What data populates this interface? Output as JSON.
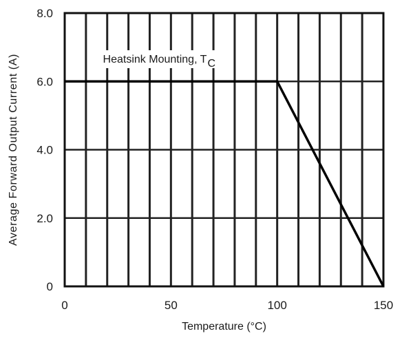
{
  "chart_data": {
    "type": "line",
    "xlabel": "Temperature (°C)",
    "ylabel": "Average Forward Output Current (A)",
    "xlim": [
      0,
      150
    ],
    "ylim": [
      0,
      8
    ],
    "x_ticks": [
      {
        "value": 0,
        "label": "0"
      },
      {
        "value": 50,
        "label": "50"
      },
      {
        "value": 100,
        "label": "100"
      },
      {
        "value": 150,
        "label": "150"
      }
    ],
    "y_ticks": [
      {
        "value": 0,
        "label": "0"
      },
      {
        "value": 2,
        "label": "2.0"
      },
      {
        "value": 4,
        "label": "4.0"
      },
      {
        "value": 6,
        "label": "6.0"
      },
      {
        "value": 8,
        "label": "8.0"
      }
    ],
    "x_gridlines": [
      0,
      10,
      20,
      30,
      40,
      50,
      60,
      70,
      80,
      90,
      100,
      110,
      120,
      130,
      140,
      150
    ],
    "y_gridlines": [
      0,
      2,
      4,
      6,
      8
    ],
    "grid": true,
    "series": [
      {
        "x": [
          0,
          100,
          150
        ],
        "y": [
          6.0,
          6.0,
          0
        ]
      }
    ],
    "annotations": [
      {
        "text": "Heatsink Mounting, T",
        "subscript": "C",
        "x": 18,
        "y": 6.55
      }
    ]
  }
}
